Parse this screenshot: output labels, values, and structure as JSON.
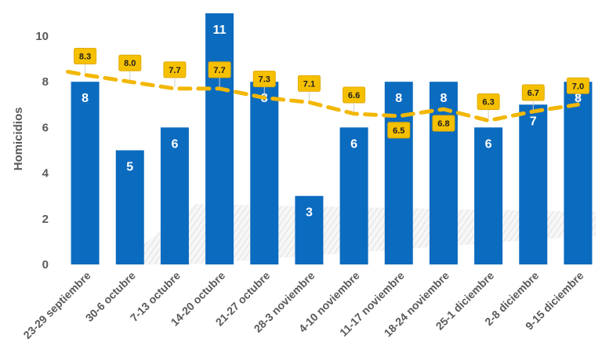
{
  "chart_data": {
    "type": "bar",
    "ylabel": "Homicidios",
    "ylim": [
      0,
      11
    ],
    "yticks": [
      0,
      2,
      4,
      6,
      8,
      10
    ],
    "grid": false,
    "categories": [
      "23-29 septiembre",
      "30-6 octubre",
      "7-13 octubre",
      "14-20 octubre",
      "21-27 octubre",
      "28-3 noviembre",
      "4-10 noviembre",
      "11-17 noviembre",
      "18-24 noviembre",
      "25-1 diciembre",
      "2-8 diciembre",
      "9-15 diciembre"
    ],
    "series": [
      {
        "type": "bar",
        "values": [
          8,
          5,
          6,
          11,
          8,
          3,
          6,
          8,
          8,
          6,
          7,
          8
        ],
        "color": "#0b6bbf"
      },
      {
        "type": "line",
        "style": "dashed",
        "values": [
          8.3,
          8.0,
          7.7,
          7.7,
          7.3,
          7.1,
          6.6,
          6.5,
          6.8,
          6.3,
          6.7,
          7.0
        ],
        "labels": [
          "8.3",
          "8.0",
          "7.7",
          "7.7",
          "7.3",
          "7.1",
          "6.6",
          "6.5",
          "6.8",
          "6.3",
          "6.7",
          "7.0"
        ],
        "color": "#f2b705"
      }
    ]
  }
}
